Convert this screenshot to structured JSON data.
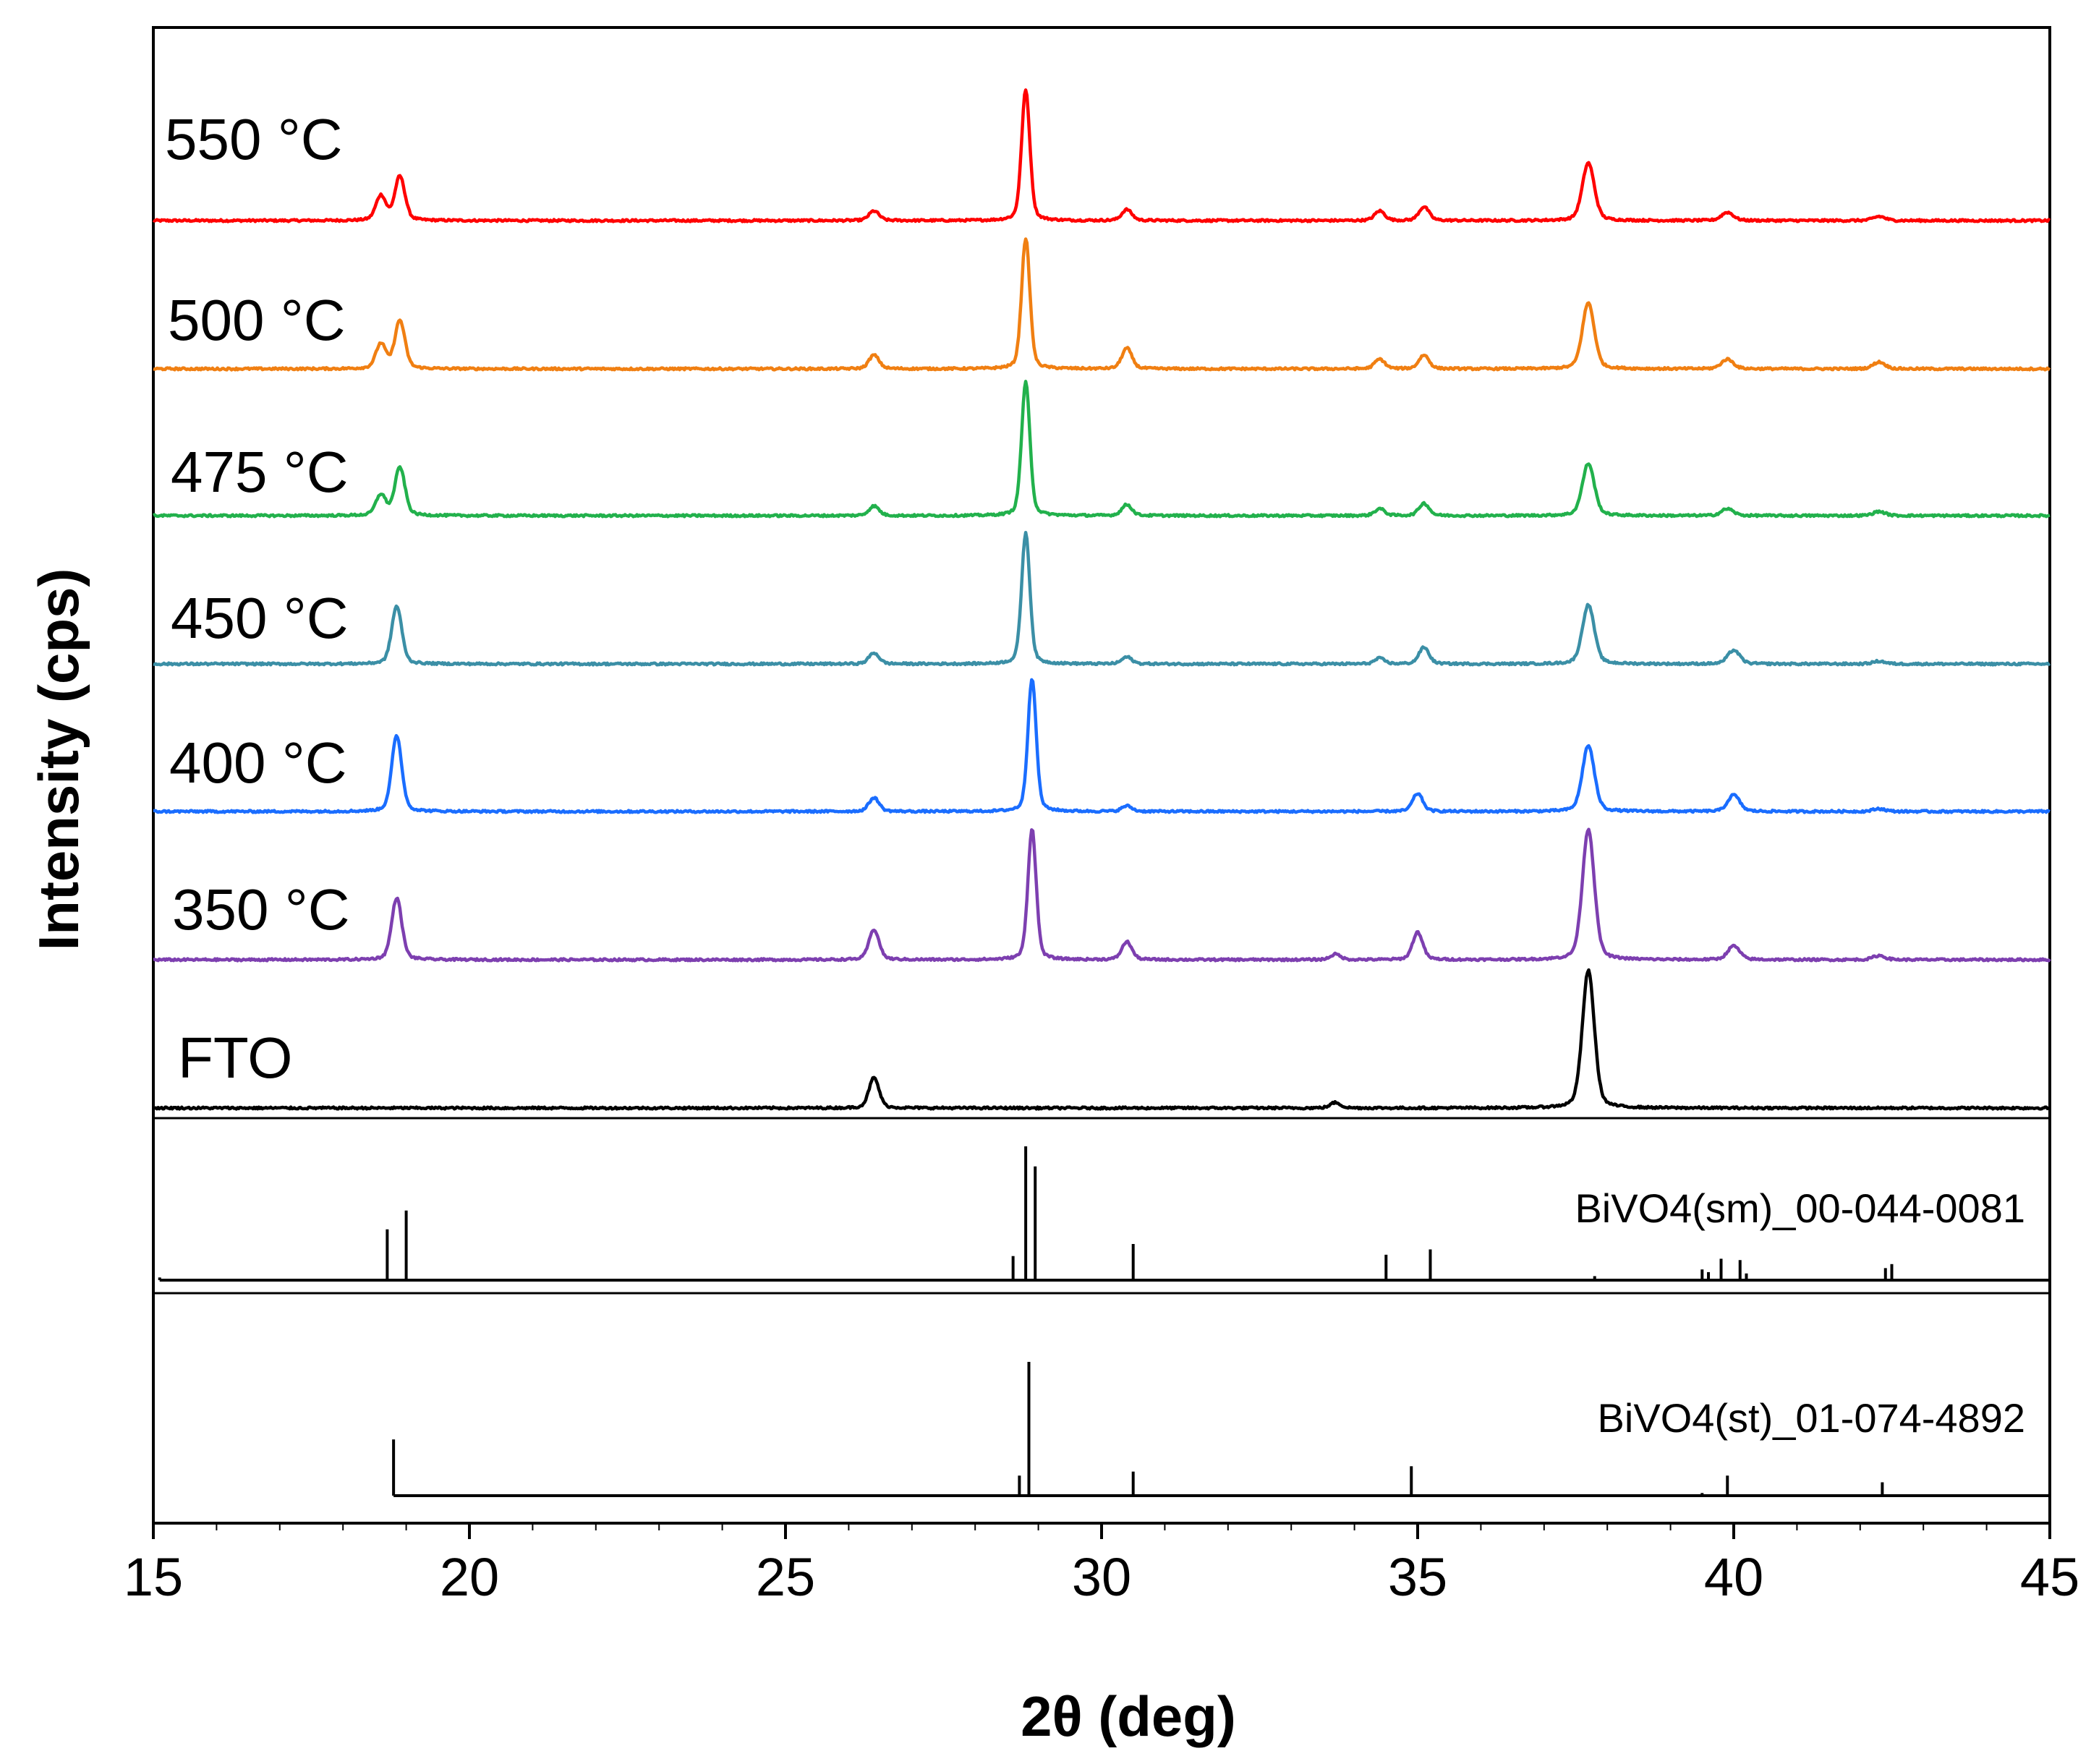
{
  "chart_data": {
    "type": "line",
    "subtype": "stacked-xrd-patterns",
    "xlabel": "2θ (deg)",
    "ylabel": "Intensity (cps)",
    "xlim": [
      15,
      45
    ],
    "xticks": [
      15,
      20,
      25,
      30,
      35,
      40,
      45
    ],
    "grid": false,
    "legend": "inline-labels",
    "series": [
      {
        "name": "550 °C",
        "color": "#ff0000",
        "peaks": [
          [
            18.6,
            0.18
          ],
          [
            18.9,
            0.32
          ],
          [
            26.4,
            0.07
          ],
          [
            28.8,
            0.95
          ],
          [
            30.4,
            0.08
          ],
          [
            34.4,
            0.07
          ],
          [
            35.1,
            0.1
          ],
          [
            37.7,
            0.42
          ],
          [
            39.9,
            0.06
          ],
          [
            42.3,
            0.03
          ]
        ]
      },
      {
        "name": "500 °C",
        "color": "#f07f12",
        "peaks": [
          [
            18.6,
            0.18
          ],
          [
            18.9,
            0.35
          ],
          [
            26.4,
            0.1
          ],
          [
            28.8,
            0.95
          ],
          [
            30.4,
            0.15
          ],
          [
            34.4,
            0.07
          ],
          [
            35.1,
            0.1
          ],
          [
            37.7,
            0.48
          ],
          [
            39.9,
            0.07
          ],
          [
            42.3,
            0.05
          ]
        ]
      },
      {
        "name": "475 °C",
        "color": "#22b14c",
        "peaks": [
          [
            18.6,
            0.15
          ],
          [
            18.9,
            0.35
          ],
          [
            26.4,
            0.07
          ],
          [
            28.8,
            0.97
          ],
          [
            30.4,
            0.08
          ],
          [
            34.4,
            0.05
          ],
          [
            35.1,
            0.09
          ],
          [
            37.7,
            0.38
          ],
          [
            39.9,
            0.05
          ],
          [
            42.3,
            0.03
          ]
        ]
      },
      {
        "name": "450 °C",
        "color": "#3b8fa6",
        "peaks": [
          [
            18.85,
            0.42
          ],
          [
            26.4,
            0.08
          ],
          [
            28.8,
            0.95
          ],
          [
            30.4,
            0.05
          ],
          [
            34.4,
            0.04
          ],
          [
            35.1,
            0.12
          ],
          [
            37.7,
            0.43
          ],
          [
            40.0,
            0.1
          ],
          [
            42.3,
            0.02
          ]
        ]
      },
      {
        "name": "400 °C",
        "color": "#1a6dff",
        "peaks": [
          [
            18.85,
            0.55
          ],
          [
            26.4,
            0.1
          ],
          [
            28.9,
            0.97
          ],
          [
            30.4,
            0.04
          ],
          [
            35.0,
            0.13
          ],
          [
            37.7,
            0.48
          ],
          [
            40.0,
            0.12
          ],
          [
            42.3,
            0.02
          ]
        ]
      },
      {
        "name": "350 °C",
        "color": "#7d3fb0",
        "peaks": [
          [
            18.85,
            0.45
          ],
          [
            26.4,
            0.22
          ],
          [
            28.9,
            0.95
          ],
          [
            30.4,
            0.13
          ],
          [
            33.7,
            0.04
          ],
          [
            35.0,
            0.2
          ],
          [
            37.7,
            0.95
          ],
          [
            40.0,
            0.1
          ],
          [
            42.3,
            0.03
          ]
        ]
      },
      {
        "name": "FTO",
        "color": "#000000",
        "peaks": [
          [
            26.4,
            0.22
          ],
          [
            33.7,
            0.04
          ],
          [
            37.7,
            1.0
          ]
        ]
      }
    ],
    "references": [
      {
        "name": "BiVO4(sm)_00-044-0081",
        "sticks": [
          [
            15.1,
            0.02
          ],
          [
            18.7,
            0.38
          ],
          [
            19.0,
            0.52
          ],
          [
            28.6,
            0.18
          ],
          [
            28.8,
            1.0
          ],
          [
            28.95,
            0.85
          ],
          [
            30.5,
            0.27
          ],
          [
            34.5,
            0.19
          ],
          [
            35.2,
            0.23
          ],
          [
            37.8,
            0.03
          ],
          [
            39.5,
            0.08
          ],
          [
            39.6,
            0.06
          ],
          [
            39.8,
            0.16
          ],
          [
            40.1,
            0.15
          ],
          [
            40.2,
            0.05
          ],
          [
            42.4,
            0.09
          ],
          [
            42.5,
            0.12
          ]
        ]
      },
      {
        "name": "BiVO4(st)_01-074-4892",
        "sticks": [
          [
            18.8,
            0.42
          ],
          [
            28.7,
            0.15
          ],
          [
            28.85,
            1.0
          ],
          [
            30.5,
            0.18
          ],
          [
            34.9,
            0.22
          ],
          [
            39.5,
            0.02
          ],
          [
            39.9,
            0.15
          ],
          [
            42.35,
            0.1
          ]
        ]
      }
    ]
  }
}
